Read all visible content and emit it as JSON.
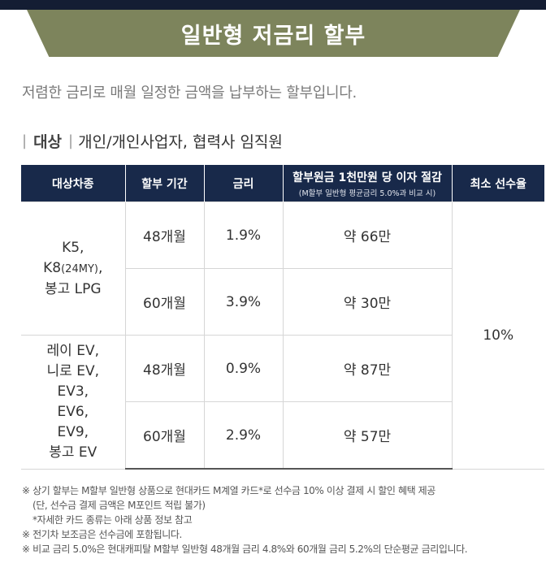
{
  "banner": {
    "title": "일반형 저금리 할부"
  },
  "description": "저렴한 금리로 매월 일정한 금액을 납부하는 할부입니다.",
  "target": {
    "bar": "|",
    "label": "대상",
    "value": "개인/개인사업자, 협력사 임직원"
  },
  "table": {
    "headers": {
      "model": "대상차종",
      "term": "할부 기간",
      "rate": "금리",
      "saving": "할부원금 1천만원 당 이자 절감",
      "saving_sub": "(M할부 일반형 평균금리 5.0%과 비교 시)",
      "min_payment": "최소 선수율"
    },
    "groups": [
      {
        "models": [
          "K5,",
          "K8",
          "(24MY)",
          ",",
          "봉고 LPG"
        ],
        "rows": [
          {
            "term": "48개월",
            "rate": "1.9%",
            "saving": "약 66만"
          },
          {
            "term": "60개월",
            "rate": "3.9%",
            "saving": "약 30만"
          }
        ]
      },
      {
        "models": [
          "레이 EV,",
          "니로 EV,",
          "EV3,",
          "EV6,",
          "EV9,",
          "봉고 EV"
        ],
        "rows": [
          {
            "term": "48개월",
            "rate": "0.9%",
            "saving": "약 87만"
          },
          {
            "term": "60개월",
            "rate": "2.9%",
            "saving": "약 57만"
          }
        ]
      }
    ],
    "min_payment": "10%"
  },
  "notes": [
    "※ 상기 할부는 M할부 일반형 상품으로 현대카드 M계열 카드*로 선수금 10% 이상 결제 시 할인 혜택 제공",
    "(단, 선수금 결제 금액은 M포인트 적립 불가)",
    "*자세한 카드 종류는 아래 상품 정보 참고",
    "※ 전기차 보조금은 선수금에 포함됩니다.",
    "※ 비교 금리 5.0%은 현대캐피탈 M할부 일반형 48개월 금리 4.8%와 60개월 금리 5.2%의 단순평균 금리입니다."
  ]
}
